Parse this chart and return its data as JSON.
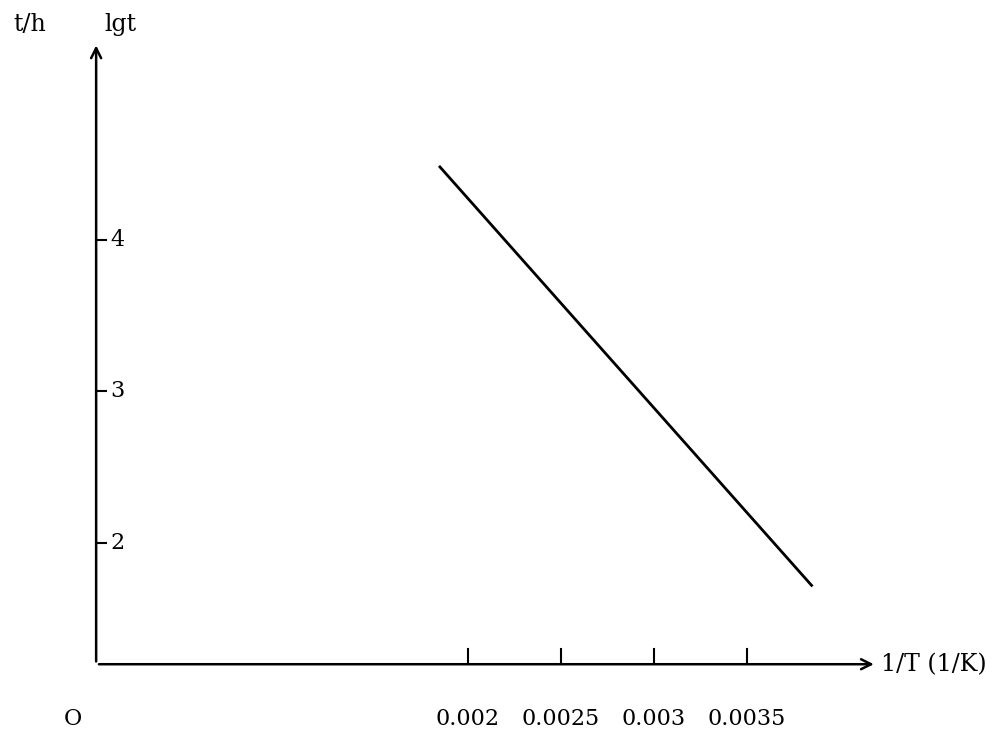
{
  "background_color": "#ffffff",
  "line_x": [
    0.00185,
    0.00385
  ],
  "line_y": [
    4.48,
    1.72
  ],
  "x_ticks": [
    0.002,
    0.0025,
    0.003,
    0.0035
  ],
  "x_tick_labels": [
    "0.002",
    "0.0025",
    "0.003",
    "0.0035"
  ],
  "y_ticks": [
    2,
    3,
    4
  ],
  "y_tick_labels": [
    "2",
    "3",
    "4"
  ],
  "xlim": [
    0,
    0.0042
  ],
  "ylim": [
    1.2,
    5.3
  ],
  "left_axis_labels": [
    {
      "y_data": 2.0,
      "exp": "2"
    },
    {
      "y_data": 3.0,
      "exp": "3"
    },
    {
      "y_data": 4.0,
      "exp": "4"
    }
  ],
  "ylabel_left": "t/h",
  "ylabel_right": "lgt",
  "xlabel": "1/T (1/K)",
  "line_color": "#000000",
  "line_width": 2.0,
  "font_size_labels": 17,
  "font_size_ticks": 16,
  "font_size_exp": 12,
  "origin_label": "O"
}
